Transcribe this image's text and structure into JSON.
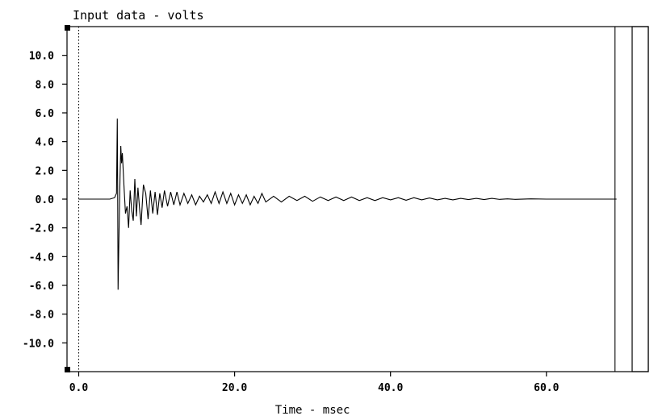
{
  "chart_data": {
    "type": "line",
    "title": "Input data - volts",
    "xlabel": "Time - msec",
    "ylabel": "",
    "xlim": [
      -1.5,
      71.0
    ],
    "ylim": [
      -12.0,
      12.0
    ],
    "x_ticks": [
      0,
      20,
      40,
      60
    ],
    "x_tick_labels": [
      "0.0",
      "20.0",
      "40.0",
      "60.0"
    ],
    "y_ticks": [
      10,
      8,
      6,
      4,
      2,
      0,
      -2,
      -4,
      -6,
      -8,
      -10
    ],
    "y_tick_labels": [
      "10.0",
      "8.0",
      "6.0",
      "4.0",
      "2.0",
      "0.0",
      "-2.0",
      "-4.0",
      "-6.0",
      "-8.0",
      "-10.0"
    ],
    "grid": false,
    "color": "#000000",
    "series": [
      {
        "x": [
          0.0,
          2.0,
          4.0,
          4.6,
          4.85,
          4.95,
          5.0,
          5.05,
          5.15,
          5.3,
          5.4,
          5.5,
          5.6,
          5.8,
          6.0,
          6.2,
          6.4,
          6.6,
          6.8,
          7.0,
          7.2,
          7.4,
          7.6,
          7.8,
          8.0,
          8.3,
          8.6,
          8.9,
          9.2,
          9.5,
          9.8,
          10.1,
          10.4,
          10.7,
          11.0,
          11.4,
          11.8,
          12.2,
          12.6,
          13.0,
          13.5,
          14.0,
          14.5,
          15.0,
          15.5,
          16.0,
          16.5,
          17.0,
          17.5,
          18.0,
          18.5,
          19.0,
          19.5,
          20.0,
          20.5,
          21.0,
          21.5,
          22.0,
          22.5,
          23.0,
          23.5,
          24.0,
          25.0,
          26.0,
          27.0,
          28.0,
          29.0,
          30.0,
          31.0,
          32.0,
          33.0,
          34.0,
          35.0,
          36.0,
          37.0,
          38.0,
          39.0,
          40.0,
          41.0,
          42.0,
          43.0,
          44.0,
          45.0,
          46.0,
          47.0,
          48.0,
          49.0,
          50.0,
          51.0,
          52.0,
          53.0,
          54.0,
          55.0,
          56.0,
          58.0,
          60.0,
          62.0,
          64.0,
          66.0,
          68.0,
          69.0
        ],
        "y": [
          0.0,
          0.0,
          0.0,
          0.1,
          0.4,
          5.6,
          0.5,
          -6.3,
          -3.0,
          1.5,
          3.7,
          2.5,
          3.2,
          1.0,
          -1.0,
          -0.5,
          -2.0,
          0.6,
          -0.8,
          -1.5,
          1.4,
          -1.2,
          0.8,
          -0.6,
          -1.8,
          1.0,
          0.4,
          -1.4,
          0.6,
          -1.0,
          0.5,
          -1.1,
          0.4,
          -0.6,
          0.6,
          -0.5,
          0.5,
          -0.4,
          0.5,
          -0.4,
          0.4,
          -0.3,
          0.3,
          -0.4,
          0.2,
          -0.2,
          0.3,
          -0.3,
          0.5,
          -0.3,
          0.5,
          -0.3,
          0.4,
          -0.4,
          0.3,
          -0.3,
          0.3,
          -0.4,
          0.2,
          -0.3,
          0.4,
          -0.2,
          0.2,
          -0.2,
          0.2,
          -0.1,
          0.2,
          -0.15,
          0.15,
          -0.1,
          0.15,
          -0.1,
          0.15,
          -0.1,
          0.1,
          -0.1,
          0.1,
          -0.05,
          0.1,
          -0.08,
          0.1,
          -0.05,
          0.08,
          -0.05,
          0.05,
          -0.05,
          0.05,
          -0.03,
          0.05,
          -0.03,
          0.05,
          -0.02,
          0.02,
          -0.02,
          0.02,
          0.0,
          0.0,
          0.0,
          0.0,
          0.0,
          0.0
        ]
      }
    ],
    "vertical_marker_lines": [
      0.0,
      68.8
    ]
  }
}
